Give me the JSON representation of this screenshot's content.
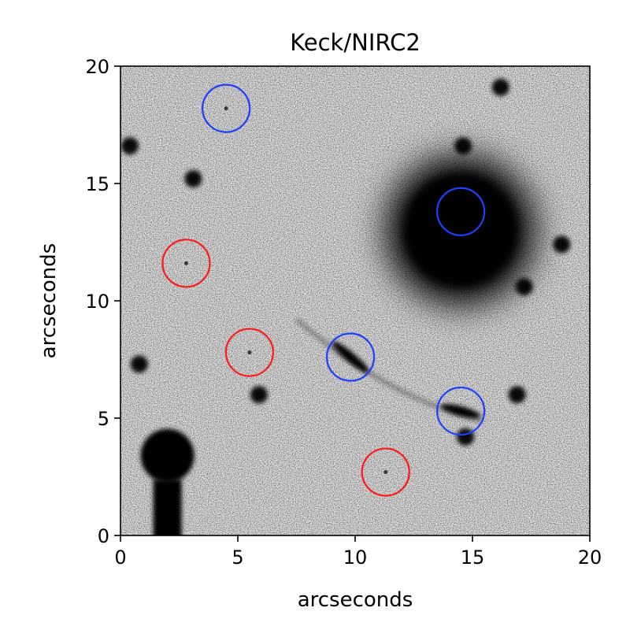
{
  "chart_data": {
    "type": "scatter",
    "title": "Keck/NIRC2",
    "xlabel": "arcseconds",
    "ylabel": "arcseconds",
    "xlim": [
      0,
      20
    ],
    "ylim": [
      0,
      20
    ],
    "xticks": [
      "0",
      "5",
      "10",
      "15",
      "20"
    ],
    "yticks": [
      "0",
      "5",
      "10",
      "15",
      "20"
    ],
    "series": [
      {
        "color": "#1f3fff",
        "marker": "open-circle",
        "points": [
          {
            "x": 4.5,
            "y": 18.2
          },
          {
            "x": 14.5,
            "y": 13.8
          },
          {
            "x": 9.8,
            "y": 7.6
          },
          {
            "x": 14.5,
            "y": 5.3
          }
        ]
      },
      {
        "color": "#ff1a1a",
        "marker": "open-circle",
        "points": [
          {
            "x": 2.8,
            "y": 11.6
          },
          {
            "x": 5.5,
            "y": 7.8
          },
          {
            "x": 11.3,
            "y": 2.7
          }
        ]
      }
    ],
    "background_image": "grayscale-astronomical-field",
    "sources": [
      {
        "x": 14.5,
        "y": 13.0,
        "kind": "bright-galaxy"
      },
      {
        "x": 2.0,
        "y": 3.4,
        "kind": "bright-star"
      },
      {
        "x": 14.6,
        "y": 16.6,
        "kind": "compact-source"
      },
      {
        "x": 0.4,
        "y": 16.6,
        "kind": "compact-source"
      },
      {
        "x": 3.1,
        "y": 15.2,
        "kind": "compact-source"
      },
      {
        "x": 16.2,
        "y": 19.1,
        "kind": "compact-source"
      },
      {
        "x": 18.8,
        "y": 12.4,
        "kind": "compact-source"
      },
      {
        "x": 17.2,
        "y": 10.6,
        "kind": "compact-source"
      },
      {
        "x": 5.9,
        "y": 6.0,
        "kind": "compact-source"
      },
      {
        "x": 16.9,
        "y": 6.0,
        "kind": "compact-source"
      },
      {
        "x": 14.7,
        "y": 4.2,
        "kind": "compact-source"
      },
      {
        "x": 0.8,
        "y": 7.3,
        "kind": "compact-source"
      },
      {
        "x": 4.5,
        "y": 18.2,
        "kind": "faint-source"
      },
      {
        "x": 2.8,
        "y": 11.6,
        "kind": "faint-source"
      },
      {
        "x": 5.5,
        "y": 7.8,
        "kind": "faint-source"
      },
      {
        "x": 11.3,
        "y": 2.7,
        "kind": "faint-source"
      }
    ],
    "arcs": [
      {
        "x": 9.8,
        "y": 7.6,
        "kind": "lensed-arc"
      },
      {
        "x": 14.5,
        "y": 5.3,
        "kind": "lensed-arc"
      }
    ],
    "grid": false,
    "legend": "none"
  }
}
